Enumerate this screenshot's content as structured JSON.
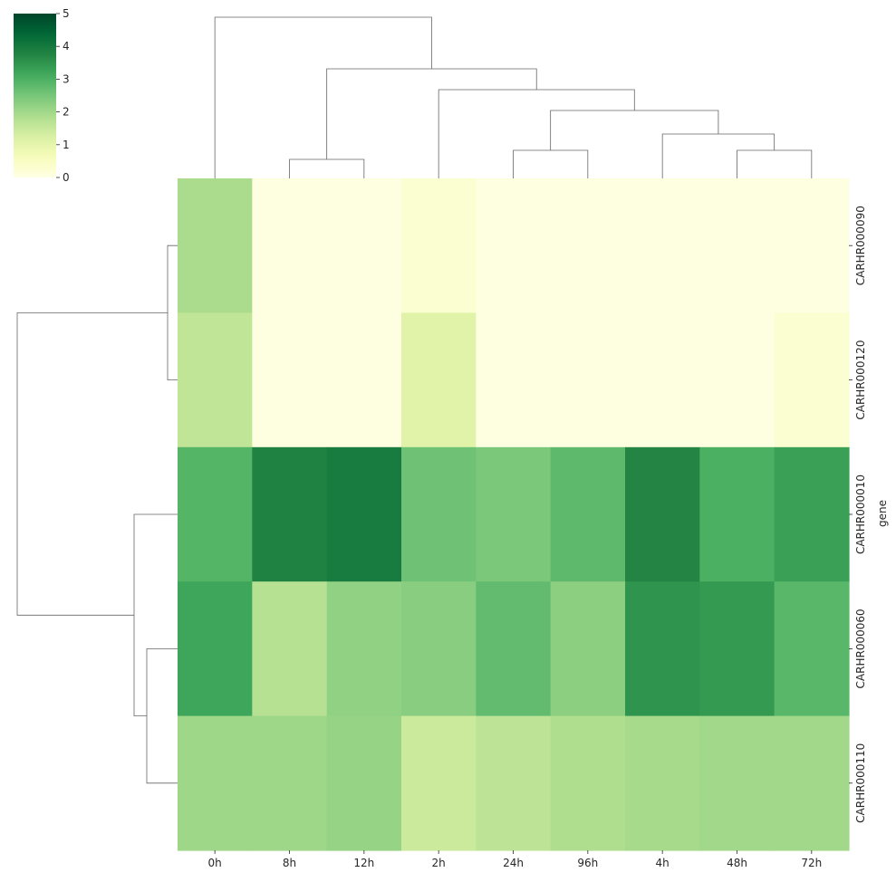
{
  "chart_data": {
    "type": "heatmap",
    "title": "",
    "xlabel": "",
    "ylabel": "gene",
    "columns": [
      "0h",
      "8h",
      "12h",
      "2h",
      "24h",
      "96h",
      "4h",
      "48h",
      "72h"
    ],
    "rows": [
      "CARHR000090",
      "CARHR000120",
      "CARHR000010",
      "CARHR000060",
      "CARHR000110"
    ],
    "values": [
      [
        1.9,
        0.05,
        0.05,
        0.3,
        0.05,
        0.05,
        0.05,
        0.05,
        0.05
      ],
      [
        1.6,
        0.05,
        0.05,
        1.1,
        0.05,
        0.05,
        0.05,
        0.05,
        0.3
      ],
      [
        2.9,
        3.8,
        3.95,
        2.6,
        2.45,
        2.8,
        3.75,
        3.0,
        3.3
      ],
      [
        3.2,
        1.75,
        2.2,
        2.3,
        2.75,
        2.25,
        3.5,
        3.4,
        2.85
      ],
      [
        2.05,
        2.05,
        2.15,
        1.45,
        1.65,
        1.85,
        1.95,
        2.0,
        2.0
      ]
    ],
    "colorbar": {
      "colormap": "Greens",
      "low_color": "#ffffe5",
      "high_color": "#004529",
      "range": [
        0,
        5
      ],
      "ticks": [
        "0",
        "1",
        "2",
        "3",
        "4",
        "5"
      ]
    },
    "row_dendrogram": true,
    "col_dendrogram": true
  }
}
